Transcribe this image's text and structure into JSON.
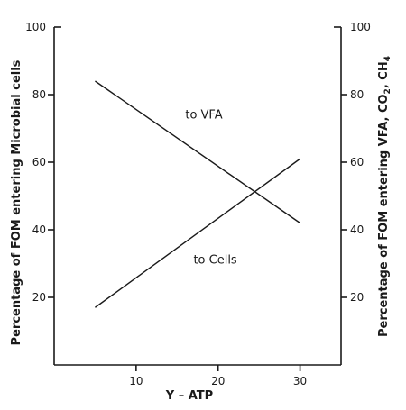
{
  "chart_data": {
    "type": "line",
    "title": "",
    "xlabel": "Y – ATP",
    "ylabel_left": "Percentage of FOM entering Microbial cells",
    "ylabel_right_parts": [
      "Percentage of FOM entering VFA, CO",
      "2",
      ", CH",
      "4"
    ],
    "xlim": [
      0,
      35
    ],
    "ylim_left": [
      0,
      100
    ],
    "ylim_right": [
      0,
      100
    ],
    "x_ticks": [
      10,
      20,
      30
    ],
    "y_ticks_left": [
      20,
      40,
      60,
      80,
      100
    ],
    "y_ticks_right": [
      20,
      40,
      60,
      80,
      100
    ],
    "grid": false,
    "series": [
      {
        "label": "to VFA",
        "x": [
          5,
          30
        ],
        "y": [
          84,
          42
        ]
      },
      {
        "label": "to Cells",
        "x": [
          5,
          30
        ],
        "y": [
          17,
          61
        ]
      }
    ],
    "annotations": [
      {
        "text": "to VFA",
        "x": 16,
        "y": 73
      },
      {
        "text": "to Cells",
        "x": 17,
        "y": 30
      }
    ]
  }
}
